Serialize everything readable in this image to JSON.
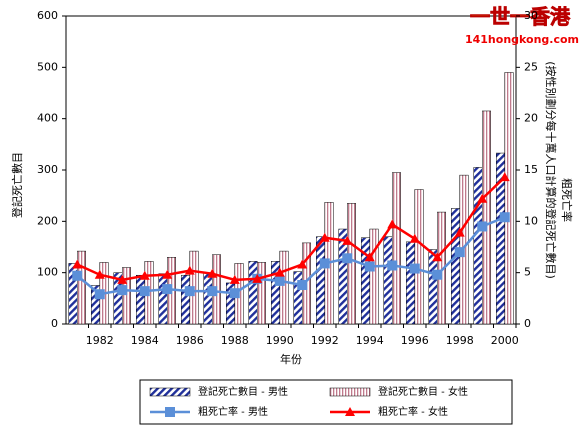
{
  "chart_data": {
    "type": "bar-line",
    "watermark": [
      "一世一香港",
      "141hongkong.com"
    ],
    "x_label": "年份",
    "y_label": "登記死亡數目",
    "y2_label": [
      "粗死亡率",
      "(按性別劃分每十萬人口計算的登記死亡數目)"
    ],
    "categories": [
      null,
      "1982",
      null,
      "1984",
      null,
      "1986",
      null,
      "1988",
      null,
      "1990",
      null,
      "1992",
      null,
      "1994",
      null,
      "1996",
      null,
      "1998",
      null,
      "2000"
    ],
    "ylim": [
      0,
      600
    ],
    "yticks": [
      0,
      100,
      200,
      300,
      400,
      500,
      600
    ],
    "y2lim": [
      0,
      30
    ],
    "y2ticks": [
      0,
      5,
      10,
      15,
      20,
      25,
      30
    ],
    "series": [
      {
        "name": "登記死亡數目 - 男性",
        "kind": "bar",
        "color": "#1f2f9a",
        "values": [
          118,
          75,
          100,
          95,
          98,
          95,
          100,
          80,
          122,
          122,
          102,
          170,
          185,
          168,
          170,
          160,
          145,
          225,
          305,
          333
        ]
      },
      {
        "name": "登記死亡數目 - 女性",
        "kind": "bar",
        "color": "#c07a8c",
        "values": [
          142,
          120,
          110,
          122,
          130,
          142,
          135,
          118,
          120,
          142,
          158,
          237,
          235,
          185,
          295,
          262,
          218,
          290,
          415,
          490
        ]
      },
      {
        "name": "粗死亡率 - 男性",
        "kind": "line",
        "axis": "y2",
        "color": "#5b8fd8",
        "values": [
          4.7,
          2.9,
          3.3,
          3.2,
          3.4,
          3.2,
          3.2,
          3.0,
          4.4,
          4.2,
          3.8,
          5.9,
          6.4,
          5.6,
          5.7,
          5.4,
          4.8,
          7.0,
          9.5,
          10.4
        ]
      },
      {
        "name": "粗死亡率 - 女性",
        "kind": "line",
        "axis": "y2",
        "color": "#ff0000",
        "values": [
          5.8,
          4.8,
          4.3,
          4.7,
          4.8,
          5.2,
          4.9,
          4.3,
          4.4,
          5.0,
          5.8,
          8.4,
          8.1,
          6.5,
          9.7,
          8.3,
          6.5,
          8.9,
          12.2,
          14.3
        ]
      }
    ]
  }
}
